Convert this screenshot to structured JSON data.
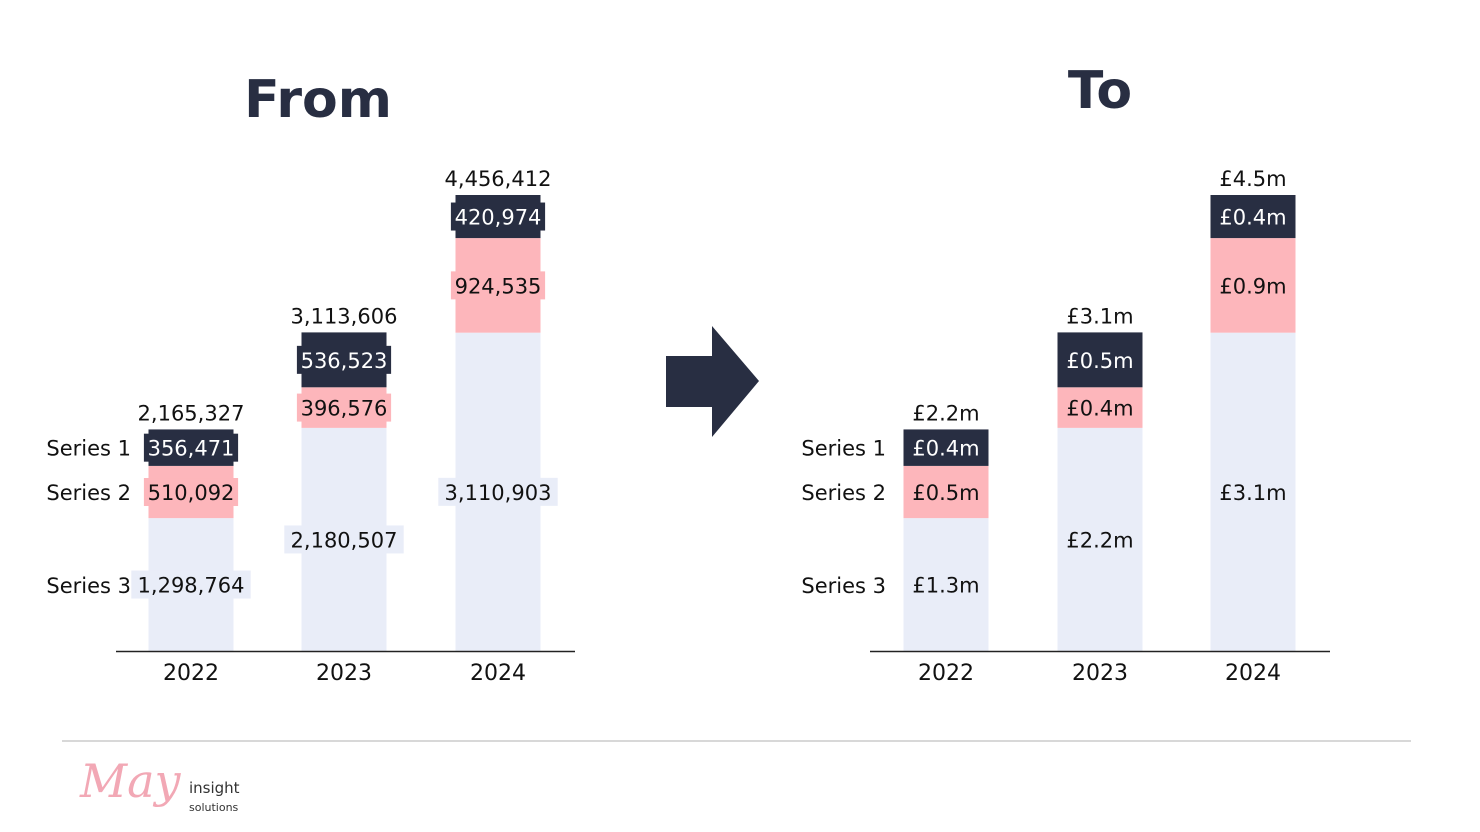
{
  "colors": {
    "series1": "#282e42",
    "series2": "#fdb6bb",
    "series3": "#e9edf8",
    "dark_text": "#111111",
    "light_text": "#ffffff",
    "arrow": "#282e42",
    "divider": "#d8d8d8",
    "logo_pink": "#f2a8b5"
  },
  "chart_data": [
    {
      "type": "bar",
      "stacked": true,
      "title": "From",
      "categories": [
        "2022",
        "2023",
        "2024"
      ],
      "series": [
        {
          "name": "Series 3",
          "values": [
            1298764,
            2180507,
            3110903
          ],
          "labels": [
            "1,298,764",
            "2,180,507",
            "3,110,903"
          ]
        },
        {
          "name": "Series 2",
          "values": [
            510092,
            396576,
            924535
          ],
          "labels": [
            "510,092",
            "396,576",
            "924,535"
          ]
        },
        {
          "name": "Series 1",
          "values": [
            356471,
            536523,
            420974
          ],
          "labels": [
            "356,471",
            "536,523",
            "420,974"
          ]
        }
      ],
      "totals": [
        "2,165,327",
        "3,113,606",
        "4,456,412"
      ],
      "total_values": [
        2165327,
        3113606,
        4456412
      ],
      "legend_labels": [
        "Series 1",
        "Series 2",
        "Series 3"
      ],
      "ylim": [
        0,
        4456412
      ]
    },
    {
      "type": "bar",
      "stacked": true,
      "title": "To",
      "categories": [
        "2022",
        "2023",
        "2024"
      ],
      "series": [
        {
          "name": "Series 3",
          "values": [
            1298764,
            2180507,
            3110903
          ],
          "labels": [
            "£1.3m",
            "£2.2m",
            "£3.1m"
          ]
        },
        {
          "name": "Series 2",
          "values": [
            510092,
            396576,
            924535
          ],
          "labels": [
            "£0.5m",
            "£0.4m",
            "£0.9m"
          ]
        },
        {
          "name": "Series 1",
          "values": [
            356471,
            536523,
            420974
          ],
          "labels": [
            "£0.4m",
            "£0.5m",
            "£0.4m"
          ]
        }
      ],
      "totals": [
        "£2.2m",
        "£3.1m",
        "£4.5m"
      ],
      "total_values": [
        2165327,
        3113606,
        4456412
      ],
      "legend_labels": [
        "Series 1",
        "Series 2",
        "Series 3"
      ],
      "ylim": [
        0,
        4456412
      ]
    }
  ],
  "logo": {
    "script": "May",
    "line1": "insight",
    "line2": "solutions"
  },
  "arrow_icon": "right-arrow-icon"
}
